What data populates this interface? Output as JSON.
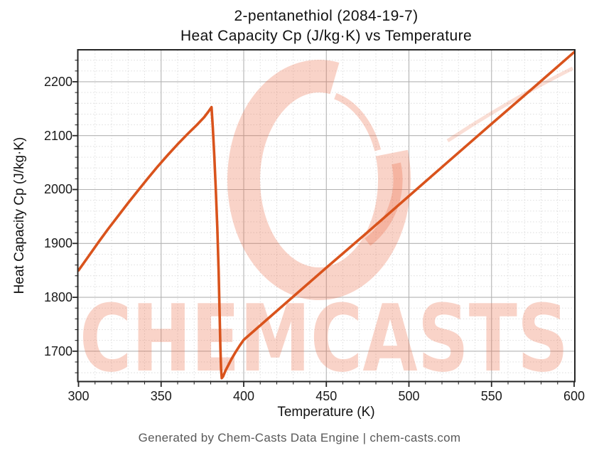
{
  "title": {
    "line1": "2-pentanethiol (2084-19-7)",
    "line2": "Heat Capacity Cp (J/kg·K) vs Temperature"
  },
  "footer": "Generated by Chem-Casts Data Engine | chem-casts.com",
  "watermark": {
    "logo": "chemcasts-c-swirl",
    "text": "CHEMCASTS",
    "color": "rgba(234,108,72,0.30)"
  },
  "theme": {
    "line_color": "#d9531c",
    "spine_color": "#262626",
    "major_grid_color": "#b3b3b3",
    "minor_grid_color": "#d9d9d9",
    "footer_color": "#595959"
  },
  "chart_data": {
    "type": "line",
    "title": "2-pentanethiol (2084-19-7) — Heat Capacity Cp (J/kg·K) vs Temperature",
    "xlabel": "Temperature (K)",
    "ylabel": "Heat Capacity Cp (J/kg·K)",
    "xlim": [
      300,
      600
    ],
    "ylim": [
      1645,
      2258
    ],
    "x_major_ticks": [
      300,
      350,
      400,
      450,
      500,
      550,
      600
    ],
    "x_minor_step": 10,
    "y_major_ticks": [
      1700,
      1800,
      1900,
      2000,
      2100,
      2200
    ],
    "y_minor_step": 20,
    "grid": true,
    "legend": "none",
    "series": [
      {
        "name": "Heat Capacity Cp (J/kg·K)",
        "points": [
          [
            300,
            1850
          ],
          [
            306,
            1876
          ],
          [
            312,
            1902
          ],
          [
            318,
            1927
          ],
          [
            324,
            1951
          ],
          [
            330,
            1975
          ],
          [
            336,
            1998
          ],
          [
            342,
            2021
          ],
          [
            348,
            2043
          ],
          [
            354,
            2064
          ],
          [
            360,
            2084
          ],
          [
            366,
            2103
          ],
          [
            372,
            2121
          ],
          [
            376,
            2134
          ],
          [
            378.5,
            2144
          ],
          [
            380.5,
            2153
          ],
          [
            381.3,
            2115
          ],
          [
            382.2,
            2062
          ],
          [
            383.1,
            2000
          ],
          [
            384,
            1930
          ],
          [
            384.8,
            1848
          ],
          [
            385.4,
            1768
          ],
          [
            385.9,
            1705
          ],
          [
            386.3,
            1668
          ],
          [
            386.7,
            1650
          ],
          [
            387.5,
            1653
          ],
          [
            389,
            1664
          ],
          [
            391,
            1676
          ],
          [
            392.5,
            1685
          ],
          [
            395,
            1698
          ],
          [
            397.5,
            1710
          ],
          [
            400,
            1721
          ],
          [
            425,
            1788
          ],
          [
            450,
            1855
          ],
          [
            475,
            1921
          ],
          [
            500,
            1988
          ],
          [
            525,
            2055
          ],
          [
            550,
            2122
          ],
          [
            575,
            2188
          ],
          [
            600,
            2255
          ]
        ]
      }
    ]
  }
}
